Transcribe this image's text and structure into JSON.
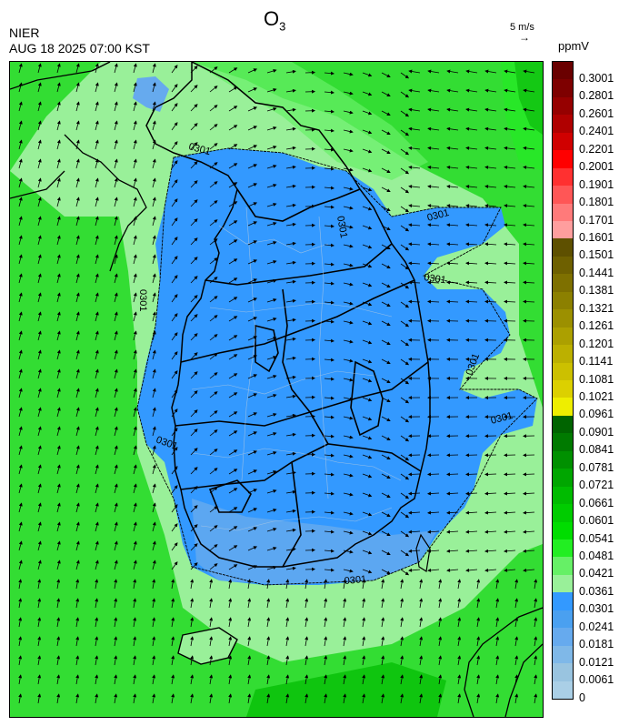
{
  "header": {
    "title_main": "O",
    "title_sub": "3",
    "agency": "NIER",
    "datetime": "AUG 18 2025 07:00 KST",
    "wind_reference": "5 m/s",
    "unit": "ppmV"
  },
  "colorbar": {
    "labels": [
      "0.3001",
      "0.2801",
      "0.2601",
      "0.2401",
      "0.2201",
      "0.2001",
      "0.1901",
      "0.1801",
      "0.1701",
      "0.1601",
      "0.1501",
      "0.1441",
      "0.1381",
      "0.1321",
      "0.1261",
      "0.1201",
      "0.1141",
      "0.1081",
      "0.1021",
      "0.0961",
      "0.0901",
      "0.0841",
      "0.0781",
      "0.0721",
      "0.0661",
      "0.0601",
      "0.0541",
      "0.0481",
      "0.0421",
      "0.0361",
      "0.0301",
      "0.0241",
      "0.0181",
      "0.0121",
      "0.0061",
      "0"
    ],
    "colors": [
      "#6a0000",
      "#7e0000",
      "#960000",
      "#b00000",
      "#d00000",
      "#ff0000",
      "#ff3030",
      "#ff5656",
      "#ff7a7a",
      "#ff9e9e",
      "#5e5000",
      "#6e6000",
      "#7e7000",
      "#8c8000",
      "#9c9000",
      "#aca000",
      "#bcb000",
      "#ccc000",
      "#dcd000",
      "#eeee00",
      "#006400",
      "#007a00",
      "#009000",
      "#00a600",
      "#00bb00",
      "#00cc00",
      "#00dd00",
      "#22ee22",
      "#66f066",
      "#99f099",
      "#3399ff",
      "#4aa0f0",
      "#66aaee",
      "#7fb8e8",
      "#99c4e0",
      "#aacfe6"
    ]
  },
  "map": {
    "contour_labels": [
      "0301",
      "0301",
      "0301",
      "0301",
      "0301",
      "0301",
      "0301",
      "0301"
    ],
    "colors": {
      "background_green": "#33dd33",
      "light_green": "#99f099",
      "dark_green": "#009000",
      "blue": "#3399ff",
      "light_blue": "#66aaee",
      "boundary": "#000000"
    }
  }
}
